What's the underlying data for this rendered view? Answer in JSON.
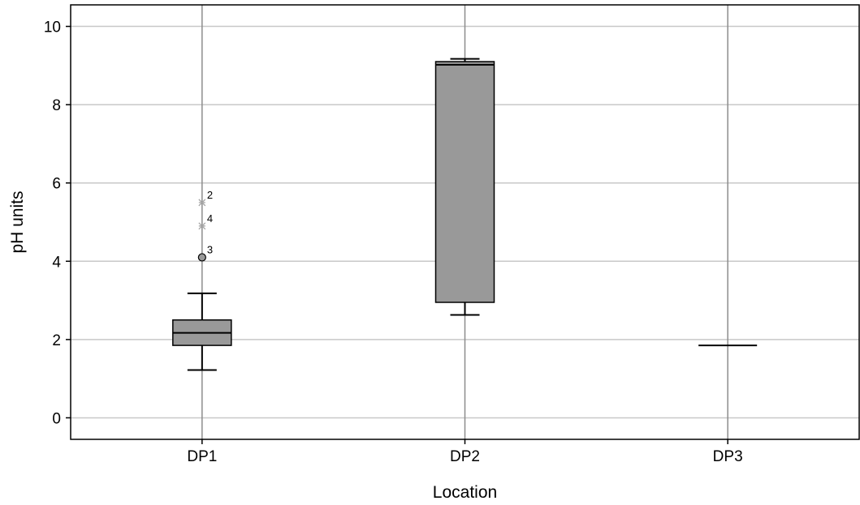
{
  "chart_data": {
    "type": "boxplot",
    "xlabel": "Location",
    "ylabel": "pH units",
    "ylim": [
      -0.55,
      10.55
    ],
    "yticks": [
      0,
      2,
      4,
      6,
      8,
      10
    ],
    "grid": true,
    "colors": {
      "box": "#999999",
      "grid": "#c8c8c8",
      "category_line": "#8c8c8c",
      "axis": "#000000",
      "extreme": "#a6a6a6"
    },
    "categories": [
      "DP1",
      "DP2",
      "DP3"
    ],
    "boxes": [
      {
        "category": "DP1",
        "whisker_low": 1.22,
        "q1": 1.85,
        "median": 2.17,
        "q3": 2.5,
        "whisker_high": 3.18,
        "outliers": [
          {
            "value": 4.1,
            "label": "3",
            "kind": "outlier"
          }
        ],
        "extremes": [
          {
            "value": 5.5,
            "label": "2"
          },
          {
            "value": 4.9,
            "label": "4"
          }
        ]
      },
      {
        "category": "DP2",
        "whisker_low": 2.63,
        "q1": 2.95,
        "median": 9.02,
        "q3": 9.1,
        "whisker_high": 9.17,
        "outliers": [],
        "extremes": []
      },
      {
        "category": "DP3",
        "whisker_low": 1.85,
        "q1": 1.85,
        "median": 1.85,
        "q3": 1.85,
        "whisker_high": 1.85,
        "outliers": [],
        "extremes": []
      }
    ]
  }
}
